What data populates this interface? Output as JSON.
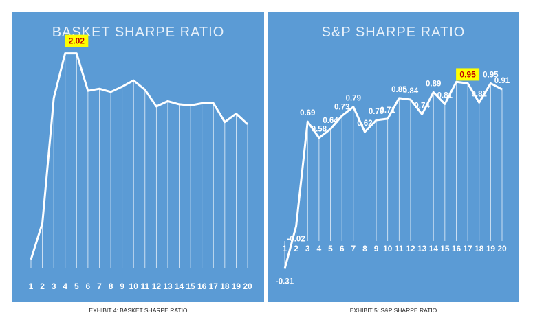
{
  "chart_data": [
    {
      "type": "line",
      "title": "BASKET SHARPE RATIO",
      "caption": "EXHIBIT 4: BASKET SHARPE RATIO",
      "x": [
        1,
        2,
        3,
        4,
        5,
        6,
        7,
        8,
        9,
        10,
        11,
        12,
        13,
        14,
        15,
        16,
        17,
        18,
        19,
        20
      ],
      "x_tick_labels": [
        "1",
        "2",
        "3",
        "4",
        "5",
        "6",
        "7",
        "8",
        "9",
        "10",
        "11",
        "12",
        "13",
        "14",
        "15",
        "16",
        "17",
        "18",
        "19",
        "20"
      ],
      "values": [
        0.04,
        0.39,
        1.59,
        2.02,
        2.02,
        1.66,
        1.68,
        1.65,
        1.7,
        1.76,
        1.67,
        1.51,
        1.56,
        1.53,
        1.52,
        1.54,
        1.54,
        1.36,
        1.44,
        1.34
      ],
      "ylim": [
        0,
        2.4
      ],
      "data_labels": [
        {
          "index": 4,
          "text": "2.02"
        }
      ],
      "highlight_color": "#ffff00",
      "highlight_text_color": "#c00000",
      "line_color": "#ffffff",
      "background": "#5b9bd5"
    },
    {
      "type": "line",
      "title": "S&P SHARPE RATIO",
      "caption": "EXHIBIT 5: S&P SHARPE RATIO",
      "x": [
        1,
        2,
        3,
        4,
        5,
        6,
        7,
        8,
        9,
        10,
        11,
        12,
        13,
        14,
        15,
        16,
        17,
        18,
        19,
        20
      ],
      "x_tick_labels": [
        "1",
        "2",
        "3",
        "4",
        "5",
        "6",
        "7",
        "8",
        "9",
        "10",
        "11",
        "12",
        "13",
        "14",
        "15",
        "16",
        "17",
        "18",
        "19",
        "20"
      ],
      "values": [
        -0.31,
        -0.02,
        0.69,
        0.58,
        0.64,
        0.73,
        0.79,
        0.62,
        0.7,
        0.71,
        0.85,
        0.84,
        0.74,
        0.89,
        0.81,
        0.96,
        0.95,
        0.82,
        0.95,
        0.91
      ],
      "ylim": [
        -0.35,
        1.05
      ],
      "data_labels": [
        {
          "index": 0,
          "text": "-0.31"
        },
        {
          "index": 1,
          "text": "-0.02"
        },
        {
          "index": 2,
          "text": "0.69"
        },
        {
          "index": 3,
          "text": "0.58"
        },
        {
          "index": 4,
          "text": "0.64"
        },
        {
          "index": 5,
          "text": "0.73"
        },
        {
          "index": 6,
          "text": "0.79"
        },
        {
          "index": 7,
          "text": "0.62"
        },
        {
          "index": 8,
          "text": "0.70"
        },
        {
          "index": 9,
          "text": "0.71"
        },
        {
          "index": 10,
          "text": "0.85"
        },
        {
          "index": 11,
          "text": "0.84"
        },
        {
          "index": 12,
          "text": "0.74"
        },
        {
          "index": 13,
          "text": "0.89"
        },
        {
          "index": 14,
          "text": "0.81"
        },
        {
          "index": 16,
          "text": "0.95"
        },
        {
          "index": 17,
          "text": "0.82"
        },
        {
          "index": 18,
          "text": "0.95"
        },
        {
          "index": 19,
          "text": "0.91"
        }
      ],
      "highlight_index": 16,
      "highlight_color": "#ffff00",
      "highlight_text_color": "#c00000",
      "line_color": "#ffffff",
      "background": "#5b9bd5"
    }
  ]
}
